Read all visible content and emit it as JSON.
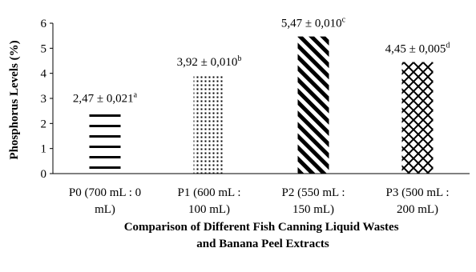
{
  "chart_data": {
    "type": "bar",
    "categories": [
      [
        "P0 (700 mL : 0",
        "mL)"
      ],
      [
        "P1 (600 mL :",
        "100 mL)"
      ],
      [
        "P2 (550 mL :",
        "150 mL)"
      ],
      [
        "P3 (500 mL :",
        "200 mL)"
      ]
    ],
    "values": [
      2.47,
      3.92,
      5.47,
      4.45
    ],
    "value_labels": [
      {
        "main": "2,47 ± 0,021",
        "sup": "a"
      },
      {
        "main": "3,92 ± 0,010",
        "sup": "b"
      },
      {
        "main": "5,47 ± 0,010",
        "sup": "c"
      },
      {
        "main": "4,45 ± 0,005",
        "sup": "d"
      }
    ],
    "patterns": [
      "horizontal-stripes",
      "dots",
      "diagonal-stripes",
      "crosshatch-diamond"
    ],
    "ylabel": "Phosphorus Levels (%)",
    "xlabel": [
      "Comparison of Different Fish Canning Liquid Wastes",
      "and Banana Peel Extracts"
    ],
    "ylim": [
      0,
      6
    ],
    "yticks": [
      0,
      1,
      2,
      3,
      4,
      5,
      6
    ],
    "grid": false,
    "bar_color": "#000000"
  }
}
